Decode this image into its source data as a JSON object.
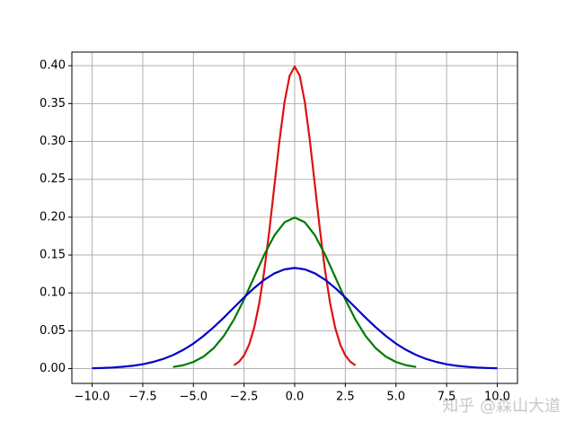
{
  "chart_data": {
    "type": "line",
    "xlim": [
      -11,
      11
    ],
    "ylim": [
      -0.0195,
      0.418
    ],
    "grid": true,
    "xticks": [
      {
        "value": -10,
        "label": "−10.0"
      },
      {
        "value": -7.5,
        "label": "−7.5"
      },
      {
        "value": -5,
        "label": "−5.0"
      },
      {
        "value": -2.5,
        "label": "−2.5"
      },
      {
        "value": 0,
        "label": "0.0"
      },
      {
        "value": 2.5,
        "label": "2.5"
      },
      {
        "value": 5,
        "label": "5.0"
      },
      {
        "value": 7.5,
        "label": "7.5"
      },
      {
        "value": 10,
        "label": "10.0"
      }
    ],
    "yticks": [
      {
        "value": 0,
        "label": "0.00"
      },
      {
        "value": 0.05,
        "label": "0.05"
      },
      {
        "value": 0.1,
        "label": "0.10"
      },
      {
        "value": 0.15,
        "label": "0.15"
      },
      {
        "value": 0.2,
        "label": "0.20"
      },
      {
        "value": 0.25,
        "label": "0.25"
      },
      {
        "value": 0.3,
        "label": "0.30"
      },
      {
        "value": 0.35,
        "label": "0.35"
      },
      {
        "value": 0.4,
        "label": "0.40"
      }
    ],
    "series": [
      {
        "color": "#dd1111",
        "x": [
          -3,
          -2.75,
          -2.5,
          -2.25,
          -2,
          -1.75,
          -1.5,
          -1.25,
          -1,
          -0.75,
          -0.5,
          -0.25,
          0,
          0.25,
          0.5,
          0.75,
          1,
          1.25,
          1.5,
          1.75,
          2,
          2.25,
          2.5,
          2.75,
          3
        ],
        "values": [
          0.0044,
          0.0091,
          0.0175,
          0.0317,
          0.054,
          0.0863,
          0.1295,
          0.1826,
          0.242,
          0.3011,
          0.3521,
          0.3867,
          0.3989,
          0.3867,
          0.3521,
          0.3011,
          0.242,
          0.1826,
          0.1295,
          0.0863,
          0.054,
          0.0317,
          0.0175,
          0.0091,
          0.0044
        ]
      },
      {
        "color": "#007a00",
        "x": [
          -6,
          -5.5,
          -5,
          -4.5,
          -4,
          -3.5,
          -3,
          -2.5,
          -2,
          -1.5,
          -1,
          -0.5,
          0,
          0.5,
          1,
          1.5,
          2,
          2.5,
          3,
          3.5,
          4,
          4.5,
          5,
          5.5,
          6
        ],
        "values": [
          0.0022,
          0.0045,
          0.0088,
          0.0159,
          0.027,
          0.0431,
          0.0648,
          0.0913,
          0.121,
          0.1506,
          0.176,
          0.1933,
          0.1995,
          0.1933,
          0.176,
          0.1506,
          0.121,
          0.0913,
          0.0648,
          0.0431,
          0.027,
          0.0159,
          0.0088,
          0.0045,
          0.0022
        ]
      },
      {
        "color": "#0000cc",
        "x": [
          -10,
          -9.5,
          -9,
          -8.5,
          -8,
          -7.5,
          -7,
          -6.5,
          -6,
          -5.5,
          -5,
          -4.5,
          -4,
          -3.5,
          -3,
          -2.5,
          -2,
          -1.5,
          -1,
          -0.5,
          0,
          0.5,
          1,
          1.5,
          2,
          2.5,
          3,
          3.5,
          4,
          4.5,
          5,
          5.5,
          6,
          6.5,
          7,
          7.5,
          8,
          8.5,
          9,
          9.5,
          10
        ],
        "values": [
          0.0005,
          0.0009,
          0.0015,
          0.0024,
          0.0038,
          0.0058,
          0.0088,
          0.0127,
          0.018,
          0.0248,
          0.0331,
          0.0432,
          0.0547,
          0.0673,
          0.0807,
          0.094,
          0.1065,
          0.1174,
          0.1258,
          0.1311,
          0.133,
          0.1311,
          0.1258,
          0.1174,
          0.1065,
          0.094,
          0.0807,
          0.0673,
          0.0547,
          0.0432,
          0.0331,
          0.0248,
          0.018,
          0.0127,
          0.0088,
          0.0058,
          0.0038,
          0.0024,
          0.0015,
          0.0009,
          0.0005
        ]
      }
    ],
    "watermark": "知乎 @森山大道"
  }
}
